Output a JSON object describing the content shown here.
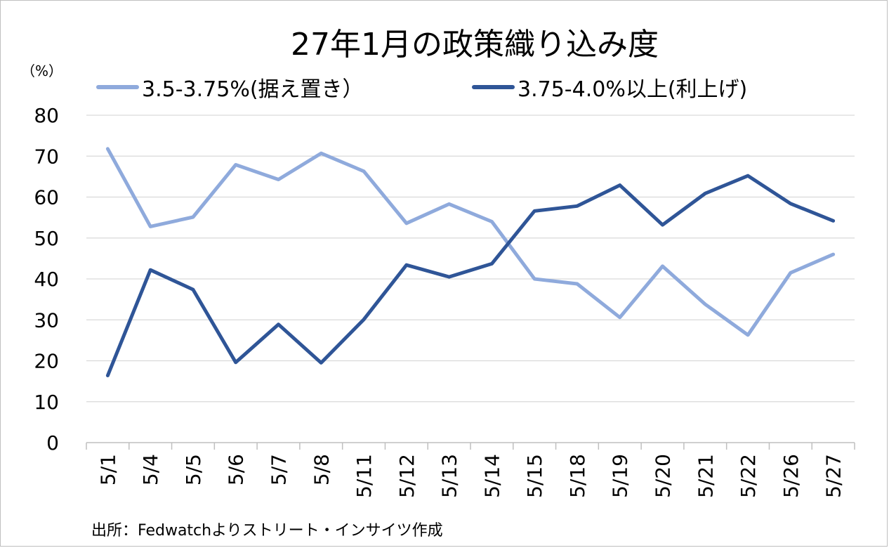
{
  "chart_data": {
    "type": "line",
    "title": "27年1月の政策織り込み度",
    "ylabel": "（%）",
    "xlabel": "",
    "ylim": [
      0,
      80
    ],
    "yticks": [
      0,
      10,
      20,
      30,
      40,
      50,
      60,
      70,
      80
    ],
    "grid": "horizontal",
    "legend_position": "top",
    "categories": [
      "5/1",
      "5/4",
      "5/5",
      "5/6",
      "5/7",
      "5/8",
      "5/11",
      "5/12",
      "5/13",
      "5/14",
      "5/15",
      "5/18",
      "5/19",
      "5/20",
      "5/21",
      "5/22",
      "5/26",
      "5/27"
    ],
    "series": [
      {
        "name": "3.5-3.75%(据え置き）",
        "color": "#8faadc",
        "values": [
          71.8,
          52.8,
          55.1,
          67.9,
          64.3,
          70.7,
          66.3,
          53.6,
          58.3,
          54.0,
          40.0,
          38.8,
          30.6,
          43.1,
          33.8,
          26.3,
          41.5,
          46.0
        ]
      },
      {
        "name": "3.75-4.0%以上(利上げ)",
        "color": "#2f5597",
        "values": [
          16.4,
          42.2,
          37.4,
          19.6,
          28.9,
          19.5,
          30.1,
          43.4,
          40.5,
          43.7,
          56.6,
          57.8,
          62.9,
          53.2,
          60.9,
          65.2,
          58.4,
          54.2
        ]
      }
    ],
    "source": "出所：Fedwatchよりストリート・インサイツ作成"
  }
}
